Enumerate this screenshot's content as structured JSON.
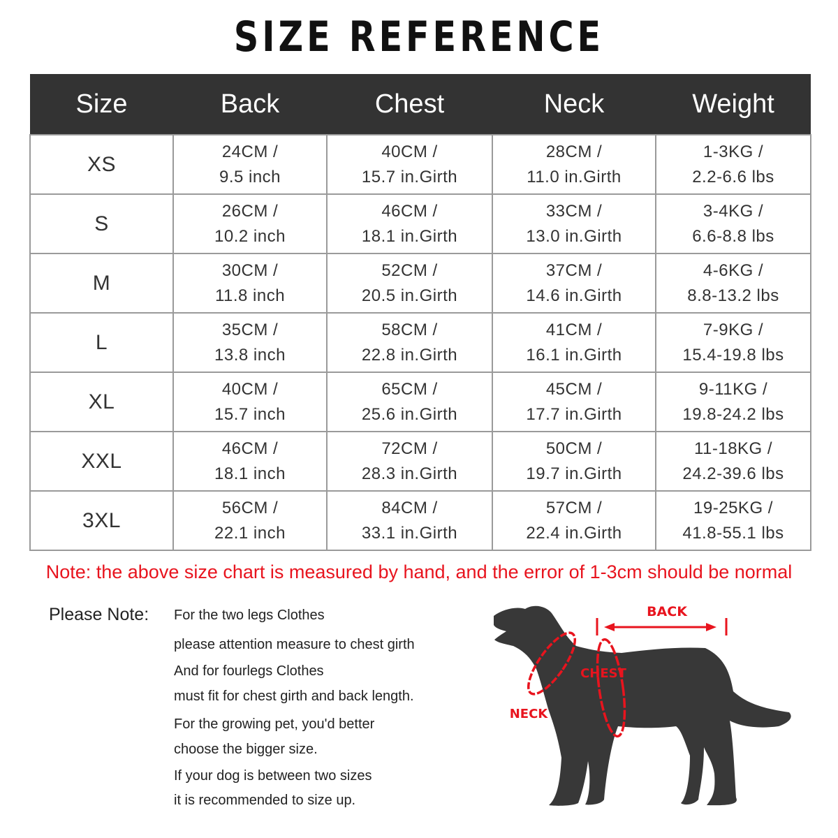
{
  "title": "SIZE REFERENCE",
  "table": {
    "headers": [
      "Size",
      "Back",
      "Chest",
      "Neck",
      "Weight"
    ],
    "rows": [
      {
        "size": "XS",
        "back": [
          "24CM /",
          "9.5 inch"
        ],
        "chest": [
          "40CM /",
          "15.7 in.Girth"
        ],
        "neck": [
          "28CM /",
          "11.0 in.Girth"
        ],
        "weight": [
          "1-3KG /",
          "2.2-6.6 lbs"
        ]
      },
      {
        "size": "S",
        "back": [
          "26CM /",
          "10.2 inch"
        ],
        "chest": [
          "46CM /",
          "18.1 in.Girth"
        ],
        "neck": [
          "33CM /",
          "13.0 in.Girth"
        ],
        "weight": [
          "3-4KG /",
          "6.6-8.8 lbs"
        ]
      },
      {
        "size": "M",
        "back": [
          "30CM /",
          "11.8 inch"
        ],
        "chest": [
          "52CM /",
          "20.5 in.Girth"
        ],
        "neck": [
          "37CM /",
          "14.6 in.Girth"
        ],
        "weight": [
          "4-6KG /",
          "8.8-13.2 lbs"
        ]
      },
      {
        "size": "L",
        "back": [
          "35CM /",
          "13.8 inch"
        ],
        "chest": [
          "58CM /",
          "22.8 in.Girth"
        ],
        "neck": [
          "41CM /",
          "16.1 in.Girth"
        ],
        "weight": [
          "7-9KG /",
          "15.4-19.8 lbs"
        ]
      },
      {
        "size": "XL",
        "back": [
          "40CM /",
          "15.7 inch"
        ],
        "chest": [
          "65CM /",
          "25.6 in.Girth"
        ],
        "neck": [
          "45CM /",
          "17.7 in.Girth"
        ],
        "weight": [
          "9-11KG /",
          "19.8-24.2 lbs"
        ]
      },
      {
        "size": "XXL",
        "back": [
          "46CM /",
          "18.1 inch"
        ],
        "chest": [
          "72CM /",
          "28.3 in.Girth"
        ],
        "neck": [
          "50CM /",
          "19.7 in.Girth"
        ],
        "weight": [
          "11-18KG /",
          "24.2-39.6 lbs"
        ]
      },
      {
        "size": "3XL",
        "back": [
          "56CM /",
          "22.1 inch"
        ],
        "chest": [
          "84CM /",
          "33.1 in.Girth"
        ],
        "neck": [
          "57CM /",
          "22.4 in.Girth"
        ],
        "weight": [
          "19-25KG /",
          "41.8-55.1 lbs"
        ]
      }
    ]
  },
  "note": "Note: the above size chart is measured by hand, and the error of 1-3cm should be normal",
  "please_note": {
    "label": "Please Note:",
    "lines": [
      "For the two legs Clothes",
      "please attention measure to chest girth",
      "And for fourlegs Clothes",
      "must fit for chest girth and back length.",
      "For the growing pet, you'd better",
      "choose the bigger size.",
      "If your dog is between two sizes",
      "it is recommended to size up."
    ]
  },
  "diagram": {
    "back": "BACK",
    "chest": "CHEST",
    "neck": "NECK"
  },
  "colors": {
    "header": "#333333",
    "accent": "#e8141e",
    "dog": "#383838"
  }
}
